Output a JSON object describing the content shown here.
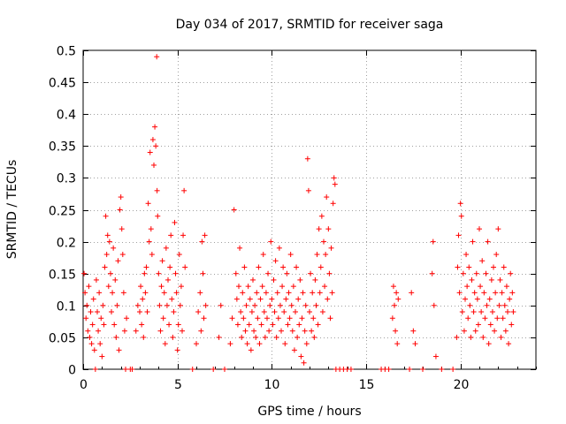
{
  "chart_data": {
    "type": "scatter",
    "title": "Day 034 of 2017, SRMTID for receiver saga",
    "xlabel": "GPS time / hours",
    "ylabel": "SRMTID / TECUs",
    "xlim": [
      0,
      24
    ],
    "ylim": [
      0,
      0.5
    ],
    "x_ticks": [
      0,
      5,
      10,
      15,
      20
    ],
    "x_tick_labels": [
      "0",
      "5",
      "10",
      "15",
      "20"
    ],
    "y_ticks": [
      0,
      0.05,
      0.1,
      0.15,
      0.2,
      0.25,
      0.3,
      0.35,
      0.4,
      0.45,
      0.5
    ],
    "y_tick_labels": [
      "0",
      "0.05",
      "0.1",
      "0.15",
      "0.2",
      "0.25",
      "0.3",
      "0.35",
      "0.4",
      "0.45",
      "0.5"
    ],
    "grid": true,
    "marker": "+",
    "color": "#ff0000",
    "series": [
      {
        "name": "SRMTID",
        "points": [
          [
            0.05,
            0.15
          ],
          [
            0.1,
            0.12
          ],
          [
            0.15,
            0.08
          ],
          [
            0.2,
            0.1
          ],
          [
            0.25,
            0.06
          ],
          [
            0.3,
            0.13
          ],
          [
            0.35,
            0.05
          ],
          [
            0.4,
            0.09
          ],
          [
            0.45,
            0.04
          ],
          [
            0.5,
            0.07
          ],
          [
            0.55,
            0.11
          ],
          [
            0.6,
            0.03
          ],
          [
            0.65,
            0.0
          ],
          [
            0.7,
            0.14
          ],
          [
            0.75,
            0.09
          ],
          [
            0.8,
            0.06
          ],
          [
            0.85,
            0.12
          ],
          [
            0.9,
            0.04
          ],
          [
            0.95,
            0.08
          ],
          [
            1.0,
            0.02
          ],
          [
            1.05,
            0.1
          ],
          [
            1.1,
            0.07
          ],
          [
            1.15,
            0.16
          ],
          [
            1.2,
            0.24
          ],
          [
            1.25,
            0.18
          ],
          [
            1.3,
            0.21
          ],
          [
            1.35,
            0.13
          ],
          [
            1.4,
            0.2
          ],
          [
            1.45,
            0.15
          ],
          [
            1.5,
            0.09
          ],
          [
            1.55,
            0.12
          ],
          [
            1.6,
            0.19
          ],
          [
            1.65,
            0.07
          ],
          [
            1.7,
            0.14
          ],
          [
            1.75,
            0.05
          ],
          [
            1.8,
            0.1
          ],
          [
            1.85,
            0.17
          ],
          [
            1.9,
            0.03
          ],
          [
            1.95,
            0.25
          ],
          [
            2.0,
            0.27
          ],
          [
            2.05,
            0.22
          ],
          [
            2.1,
            0.18
          ],
          [
            2.15,
            0.12
          ],
          [
            2.2,
            0.06
          ],
          [
            2.25,
            0.0
          ],
          [
            2.3,
            0.08
          ],
          [
            2.5,
            0.0
          ],
          [
            2.6,
            0.0
          ],
          [
            2.8,
            0.06
          ],
          [
            2.9,
            0.1
          ],
          [
            3.0,
            0.09
          ],
          [
            3.05,
            0.13
          ],
          [
            3.1,
            0.07
          ],
          [
            3.15,
            0.11
          ],
          [
            3.2,
            0.05
          ],
          [
            3.25,
            0.15
          ],
          [
            3.3,
            0.12
          ],
          [
            3.35,
            0.16
          ],
          [
            3.4,
            0.09
          ],
          [
            3.45,
            0.26
          ],
          [
            3.5,
            0.2
          ],
          [
            3.55,
            0.34
          ],
          [
            3.6,
            0.22
          ],
          [
            3.65,
            0.18
          ],
          [
            3.7,
            0.36
          ],
          [
            3.75,
            0.32
          ],
          [
            3.8,
            0.38
          ],
          [
            3.85,
            0.35
          ],
          [
            3.9,
            0.49
          ],
          [
            3.92,
            0.28
          ],
          [
            3.95,
            0.24
          ],
          [
            4.0,
            0.15
          ],
          [
            4.05,
            0.1
          ],
          [
            4.1,
            0.06
          ],
          [
            4.15,
            0.13
          ],
          [
            4.2,
            0.17
          ],
          [
            4.25,
            0.08
          ],
          [
            4.3,
            0.12
          ],
          [
            4.35,
            0.04
          ],
          [
            4.4,
            0.19
          ],
          [
            4.45,
            0.1
          ],
          [
            4.5,
            0.14
          ],
          [
            4.55,
            0.07
          ],
          [
            4.6,
            0.16
          ],
          [
            4.65,
            0.21
          ],
          [
            4.7,
            0.11
          ],
          [
            4.75,
            0.05
          ],
          [
            4.8,
            0.09
          ],
          [
            4.85,
            0.23
          ],
          [
            4.9,
            0.15
          ],
          [
            4.95,
            0.12
          ],
          [
            5.0,
            0.03
          ],
          [
            5.05,
            0.07
          ],
          [
            5.1,
            0.18
          ],
          [
            5.15,
            0.1
          ],
          [
            5.2,
            0.13
          ],
          [
            5.25,
            0.06
          ],
          [
            5.3,
            0.21
          ],
          [
            5.35,
            0.28
          ],
          [
            5.4,
            0.16
          ],
          [
            5.8,
            0.0
          ],
          [
            6.0,
            0.04
          ],
          [
            6.1,
            0.09
          ],
          [
            6.2,
            0.12
          ],
          [
            6.25,
            0.06
          ],
          [
            6.3,
            0.2
          ],
          [
            6.35,
            0.15
          ],
          [
            6.4,
            0.08
          ],
          [
            6.45,
            0.21
          ],
          [
            6.5,
            0.1
          ],
          [
            6.9,
            0.0
          ],
          [
            7.2,
            0.05
          ],
          [
            7.3,
            0.1
          ],
          [
            7.5,
            0.0
          ],
          [
            7.8,
            0.04
          ],
          [
            7.9,
            0.08
          ],
          [
            8.0,
            0.25
          ],
          [
            8.1,
            0.15
          ],
          [
            8.15,
            0.11
          ],
          [
            8.2,
            0.07
          ],
          [
            8.25,
            0.13
          ],
          [
            8.3,
            0.19
          ],
          [
            8.35,
            0.09
          ],
          [
            8.4,
            0.05
          ],
          [
            8.45,
            0.12
          ],
          [
            8.5,
            0.08
          ],
          [
            8.55,
            0.16
          ],
          [
            8.6,
            0.06
          ],
          [
            8.65,
            0.1
          ],
          [
            8.7,
            0.04
          ],
          [
            8.75,
            0.13
          ],
          [
            8.8,
            0.07
          ],
          [
            8.85,
            0.11
          ],
          [
            8.9,
            0.03
          ],
          [
            8.95,
            0.09
          ],
          [
            9.0,
            0.14
          ],
          [
            9.05,
            0.06
          ],
          [
            9.1,
            0.1
          ],
          [
            9.15,
            0.05
          ],
          [
            9.2,
            0.12
          ],
          [
            9.25,
            0.08
          ],
          [
            9.3,
            0.16
          ],
          [
            9.35,
            0.04
          ],
          [
            9.4,
            0.11
          ],
          [
            9.45,
            0.07
          ],
          [
            9.5,
            0.13
          ],
          [
            9.55,
            0.18
          ],
          [
            9.6,
            0.09
          ],
          [
            9.65,
            0.05
          ],
          [
            9.7,
            0.12
          ],
          [
            9.75,
            0.08
          ],
          [
            9.8,
            0.15
          ],
          [
            9.85,
            0.06
          ],
          [
            9.9,
            0.1
          ],
          [
            9.95,
            0.2
          ],
          [
            10.0,
            0.11
          ],
          [
            10.05,
            0.07
          ],
          [
            10.1,
            0.14
          ],
          [
            10.15,
            0.09
          ],
          [
            10.2,
            0.17
          ],
          [
            10.25,
            0.05
          ],
          [
            10.3,
            0.12
          ],
          [
            10.35,
            0.08
          ],
          [
            10.4,
            0.19
          ],
          [
            10.45,
            0.1
          ],
          [
            10.5,
            0.06
          ],
          [
            10.55,
            0.13
          ],
          [
            10.6,
            0.16
          ],
          [
            10.65,
            0.09
          ],
          [
            10.7,
            0.04
          ],
          [
            10.75,
            0.11
          ],
          [
            10.8,
            0.15
          ],
          [
            10.85,
            0.07
          ],
          [
            10.9,
            0.12
          ],
          [
            10.95,
            0.08
          ],
          [
            11.0,
            0.18
          ],
          [
            11.05,
            0.1
          ],
          [
            11.1,
            0.06
          ],
          [
            11.15,
            0.13
          ],
          [
            11.2,
            0.03
          ],
          [
            11.25,
            0.09
          ],
          [
            11.3,
            0.16
          ],
          [
            11.35,
            0.05
          ],
          [
            11.4,
            0.11
          ],
          [
            11.45,
            0.07
          ],
          [
            11.5,
            0.14
          ],
          [
            11.55,
            0.02
          ],
          [
            11.6,
            0.08
          ],
          [
            11.65,
            0.12
          ],
          [
            11.7,
            0.01
          ],
          [
            11.75,
            0.06
          ],
          [
            11.8,
            0.1
          ],
          [
            11.85,
            0.04
          ],
          [
            11.9,
            0.33
          ],
          [
            11.95,
            0.28
          ],
          [
            12.0,
            0.09
          ],
          [
            12.05,
            0.15
          ],
          [
            12.1,
            0.06
          ],
          [
            12.15,
            0.12
          ],
          [
            12.2,
            0.08
          ],
          [
            12.25,
            0.05
          ],
          [
            12.3,
            0.14
          ],
          [
            12.35,
            0.1
          ],
          [
            12.4,
            0.18
          ],
          [
            12.45,
            0.07
          ],
          [
            12.5,
            0.22
          ],
          [
            12.55,
            0.12
          ],
          [
            12.6,
            0.16
          ],
          [
            12.65,
            0.24
          ],
          [
            12.7,
            0.09
          ],
          [
            12.75,
            0.2
          ],
          [
            12.8,
            0.13
          ],
          [
            12.85,
            0.18
          ],
          [
            12.9,
            0.27
          ],
          [
            12.95,
            0.11
          ],
          [
            13.0,
            0.22
          ],
          [
            13.05,
            0.15
          ],
          [
            13.1,
            0.08
          ],
          [
            13.15,
            0.19
          ],
          [
            13.2,
            0.12
          ],
          [
            13.25,
            0.26
          ],
          [
            13.3,
            0.3
          ],
          [
            13.35,
            0.29
          ],
          [
            13.4,
            0.0
          ],
          [
            13.6,
            0.0
          ],
          [
            13.8,
            0.0
          ],
          [
            14.0,
            0.0
          ],
          [
            14.2,
            0.0
          ],
          [
            15.8,
            0.0
          ],
          [
            16.0,
            0.0
          ],
          [
            16.2,
            0.0
          ],
          [
            16.4,
            0.08
          ],
          [
            16.45,
            0.13
          ],
          [
            16.5,
            0.1
          ],
          [
            16.55,
            0.06
          ],
          [
            16.6,
            0.12
          ],
          [
            16.65,
            0.04
          ],
          [
            16.7,
            0.11
          ],
          [
            17.3,
            0.0
          ],
          [
            17.4,
            0.12
          ],
          [
            17.5,
            0.06
          ],
          [
            17.6,
            0.04
          ],
          [
            18.0,
            0.0
          ],
          [
            18.5,
            0.15
          ],
          [
            18.55,
            0.2
          ],
          [
            18.6,
            0.1
          ],
          [
            18.7,
            0.02
          ],
          [
            19.0,
            0.0
          ],
          [
            19.6,
            0.0
          ],
          [
            19.8,
            0.05
          ],
          [
            19.85,
            0.16
          ],
          [
            19.9,
            0.21
          ],
          [
            19.95,
            0.12
          ],
          [
            20.0,
            0.26
          ],
          [
            20.05,
            0.24
          ],
          [
            20.1,
            0.09
          ],
          [
            20.15,
            0.15
          ],
          [
            20.2,
            0.06
          ],
          [
            20.25,
            0.11
          ],
          [
            20.3,
            0.18
          ],
          [
            20.35,
            0.13
          ],
          [
            20.4,
            0.08
          ],
          [
            20.45,
            0.16
          ],
          [
            20.5,
            0.1
          ],
          [
            20.55,
            0.05
          ],
          [
            20.6,
            0.14
          ],
          [
            20.65,
            0.2
          ],
          [
            20.7,
            0.09
          ],
          [
            20.75,
            0.12
          ],
          [
            20.8,
            0.06
          ],
          [
            20.85,
            0.15
          ],
          [
            20.9,
            0.11
          ],
          [
            20.95,
            0.07
          ],
          [
            21.0,
            0.22
          ],
          [
            21.05,
            0.13
          ],
          [
            21.1,
            0.09
          ],
          [
            21.15,
            0.17
          ],
          [
            21.2,
            0.05
          ],
          [
            21.25,
            0.12
          ],
          [
            21.3,
            0.08
          ],
          [
            21.35,
            0.15
          ],
          [
            21.4,
            0.1
          ],
          [
            21.45,
            0.2
          ],
          [
            21.5,
            0.04
          ],
          [
            21.55,
            0.11
          ],
          [
            21.6,
            0.07
          ],
          [
            21.65,
            0.14
          ],
          [
            21.7,
            0.09
          ],
          [
            21.75,
            0.16
          ],
          [
            21.8,
            0.06
          ],
          [
            21.85,
            0.12
          ],
          [
            21.9,
            0.18
          ],
          [
            21.95,
            0.08
          ],
          [
            22.0,
            0.22
          ],
          [
            22.05,
            0.1
          ],
          [
            22.1,
            0.14
          ],
          [
            22.15,
            0.05
          ],
          [
            22.2,
            0.12
          ],
          [
            22.25,
            0.08
          ],
          [
            22.3,
            0.16
          ],
          [
            22.35,
            0.1
          ],
          [
            22.4,
            0.06
          ],
          [
            22.45,
            0.13
          ],
          [
            22.5,
            0.09
          ],
          [
            22.55,
            0.04
          ],
          [
            22.6,
            0.11
          ],
          [
            22.65,
            0.15
          ],
          [
            22.7,
            0.07
          ],
          [
            22.75,
            0.12
          ],
          [
            22.8,
            0.09
          ]
        ]
      }
    ]
  }
}
